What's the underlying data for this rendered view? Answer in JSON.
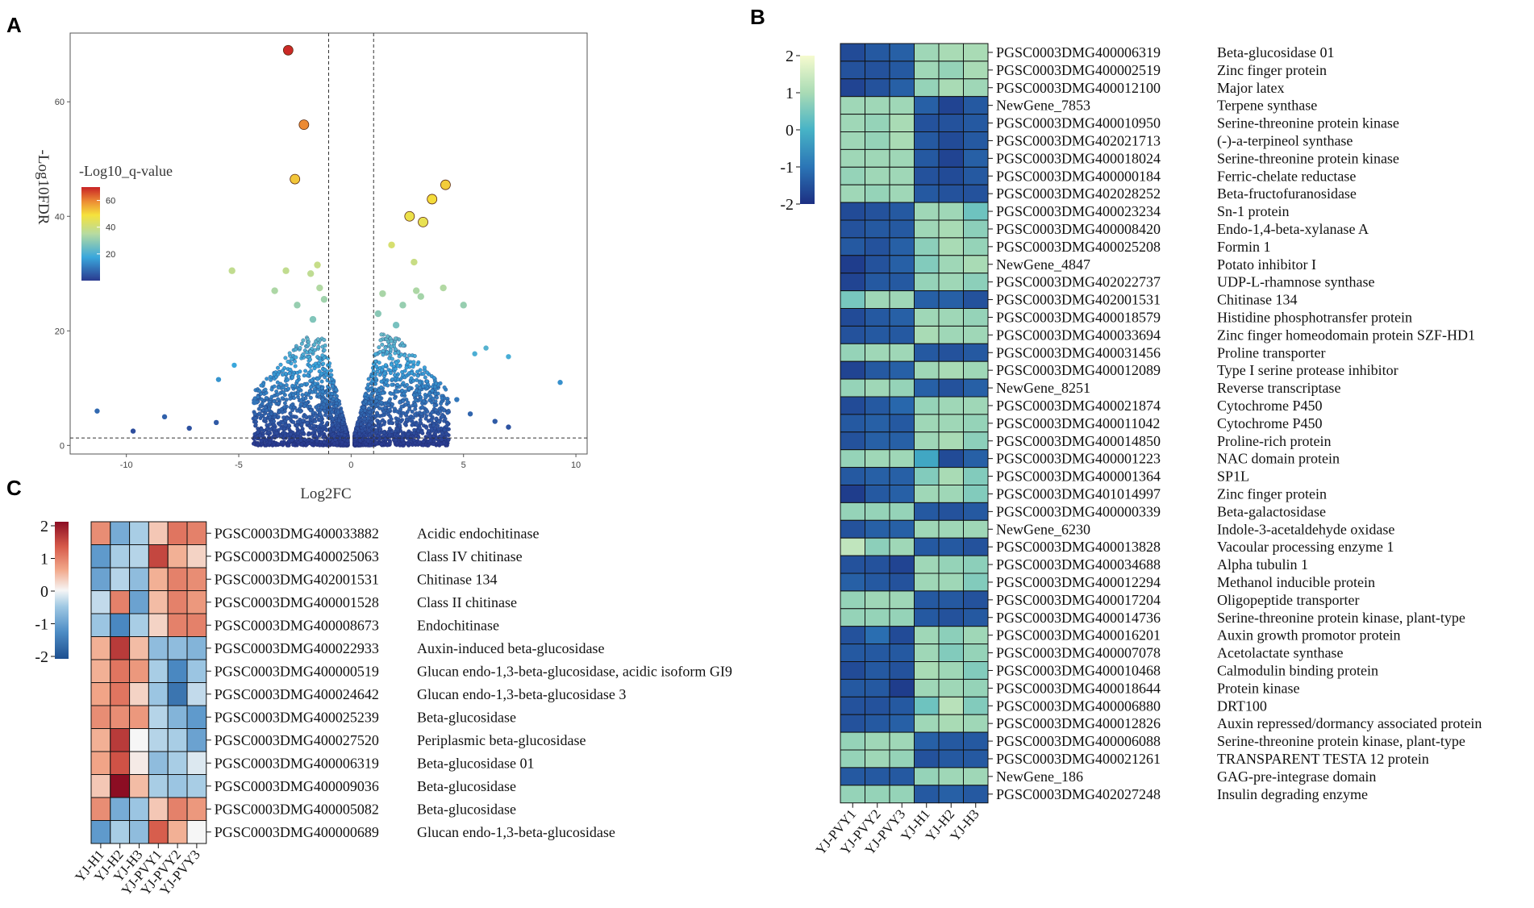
{
  "panels": {
    "a": "A",
    "b": "B",
    "c": "C"
  },
  "chart_data": [
    {
      "type": "scatter",
      "panel": "A",
      "title": "",
      "xlabel": "Log2FC",
      "ylabel": "-Log10FDR",
      "xlim": [
        -12.5,
        10.5
      ],
      "ylim": [
        -1.5,
        72
      ],
      "xticks": [
        "-10",
        "-5",
        "0",
        "5",
        "10"
      ],
      "xtick_values": [
        -10,
        -5,
        0,
        5,
        10
      ],
      "yticks": [
        "0",
        "20",
        "40",
        "60"
      ],
      "ytick_values": [
        0,
        20,
        40,
        60
      ],
      "vlines": [
        -1,
        1
      ],
      "hline": 1.3,
      "grid": false,
      "legend": {
        "title": "-Log10_q-value",
        "ticks": [
          "20",
          "40",
          "60"
        ],
        "tick_values": [
          20,
          40,
          60
        ],
        "range": [
          0,
          70
        ],
        "position": "top-left"
      },
      "points": [
        {
          "x": -2.8,
          "y": 69
        },
        {
          "x": -2.1,
          "y": 56
        },
        {
          "x": -2.5,
          "y": 46.5
        },
        {
          "x": 4.2,
          "y": 45.5
        },
        {
          "x": 3.6,
          "y": 43
        },
        {
          "x": 2.6,
          "y": 40
        },
        {
          "x": 3.2,
          "y": 39
        },
        {
          "x": 1.8,
          "y": 35
        },
        {
          "x": 2.8,
          "y": 32
        },
        {
          "x": -5.3,
          "y": 30.5
        },
        {
          "x": -2.9,
          "y": 30.5
        },
        {
          "x": -1.5,
          "y": 31.5
        },
        {
          "x": -1.8,
          "y": 30
        },
        {
          "x": 4.1,
          "y": 27.5
        },
        {
          "x": 2.9,
          "y": 27
        },
        {
          "x": -3.4,
          "y": 27
        },
        {
          "x": -1.4,
          "y": 27.5
        },
        {
          "x": 1.4,
          "y": 26.5
        },
        {
          "x": 3.1,
          "y": 26
        },
        {
          "x": 5.0,
          "y": 24.5
        },
        {
          "x": -1.2,
          "y": 25.5
        },
        {
          "x": 2.3,
          "y": 24.5
        },
        {
          "x": -2.4,
          "y": 24.5
        },
        {
          "x": 1.2,
          "y": 23
        },
        {
          "x": 2.0,
          "y": 21
        },
        {
          "x": -1.7,
          "y": 22
        },
        {
          "x": 6.0,
          "y": 17
        },
        {
          "x": 7.0,
          "y": 15.5
        },
        {
          "x": 5.5,
          "y": 16
        },
        {
          "x": -5.2,
          "y": 14
        },
        {
          "x": -5.9,
          "y": 11.5
        },
        {
          "x": 9.3,
          "y": 11
        },
        {
          "x": -11.3,
          "y": 6
        },
        {
          "x": -8.3,
          "y": 5
        },
        {
          "x": -7.2,
          "y": 3
        },
        {
          "x": -6.0,
          "y": 4
        },
        {
          "x": 6.4,
          "y": 4.2
        },
        {
          "x": 7.0,
          "y": 3.2
        },
        {
          "x": -9.7,
          "y": 2.5
        },
        {
          "x": 5.3,
          "y": 5.5
        },
        {
          "x": -4.3,
          "y": 7.5
        },
        {
          "x": 4.7,
          "y": 8
        }
      ],
      "cloud": {
        "description": "dense point cloud around 0",
        "seed": 7,
        "count": 2600,
        "xspread": 4.2,
        "ymax": 20
      }
    },
    {
      "type": "heatmap",
      "panel": "B",
      "columns": [
        "YJ-PVY1",
        "YJ-PVY2",
        "YJ-PVY3",
        "YJ-H1",
        "YJ-H2",
        "YJ-H3"
      ],
      "colorbar": {
        "ticks": [
          "2",
          "1",
          "0",
          "-1",
          "-2"
        ],
        "tick_values": [
          2,
          1,
          0,
          -1,
          -2
        ],
        "range": [
          -2,
          2
        ],
        "colors": [
          "#1c2f82",
          "#2b75b6",
          "#47b3c6",
          "#a9dbb5",
          "#f6fbcf"
        ]
      },
      "rows": [
        {
          "id": "PGSC0003DMG400006319",
          "name": "Beta-glucosidase 01",
          "values": [
            -1.6,
            -1.4,
            -1.3,
            0.9,
            1.0,
            1.0
          ]
        },
        {
          "id": "PGSC0003DMG400002519",
          "name": "Zinc finger protein",
          "values": [
            -1.5,
            -1.5,
            -1.4,
            0.9,
            0.8,
            1.0
          ]
        },
        {
          "id": "PGSC0003DMG400012100",
          "name": "Major latex",
          "values": [
            -1.7,
            -1.5,
            -1.3,
            0.8,
            1.0,
            0.9
          ]
        },
        {
          "id": "NewGene_7853",
          "name": "Terpene synthase",
          "values": [
            0.9,
            0.9,
            0.9,
            -1.3,
            -1.7,
            -1.4
          ]
        },
        {
          "id": "PGSC0003DMG400010950",
          "name": "Serine-threonine protein kinase",
          "values": [
            0.9,
            0.8,
            1.0,
            -1.5,
            -1.5,
            -1.4
          ]
        },
        {
          "id": "PGSC0003DMG402021713",
          "name": "(-)-a-terpineol synthase",
          "values": [
            0.9,
            0.8,
            1.0,
            -1.4,
            -1.6,
            -1.4
          ]
        },
        {
          "id": "PGSC0003DMG400018024",
          "name": "Serine-threonine protein kinase",
          "values": [
            0.9,
            0.9,
            0.9,
            -1.4,
            -1.7,
            -1.3
          ]
        },
        {
          "id": "PGSC0003DMG400000184",
          "name": "Ferric-chelate reductase",
          "values": [
            0.8,
            0.9,
            0.9,
            -1.5,
            -1.6,
            -1.4
          ]
        },
        {
          "id": "PGSC0003DMG402028252",
          "name": "Beta-fructofuranosidase",
          "values": [
            0.9,
            0.8,
            0.9,
            -1.4,
            -1.5,
            -1.5
          ]
        },
        {
          "id": "PGSC0003DMG400023234",
          "name": "Sn-1 protein",
          "values": [
            -1.6,
            -1.5,
            -1.4,
            0.9,
            0.9,
            0.4
          ]
        },
        {
          "id": "PGSC0003DMG400008420",
          "name": "Endo-1,4-beta-xylanase A",
          "values": [
            -1.5,
            -1.4,
            -1.4,
            0.9,
            1.0,
            0.7
          ]
        },
        {
          "id": "PGSC0003DMG400025208",
          "name": "Formin 1",
          "values": [
            -1.4,
            -1.5,
            -1.3,
            0.7,
            1.0,
            0.8
          ]
        },
        {
          "id": "NewGene_4847",
          "name": "Potato inhibitor I",
          "values": [
            -1.8,
            -1.5,
            -1.3,
            0.6,
            0.9,
            1.0
          ]
        },
        {
          "id": "PGSC0003DMG402022737",
          "name": "UDP-L-rhamnose synthase",
          "values": [
            -1.7,
            -1.4,
            -1.4,
            0.8,
            0.9,
            0.7
          ]
        },
        {
          "id": "PGSC0003DMG402001531",
          "name": "Chitinase 134",
          "values": [
            0.5,
            0.9,
            0.9,
            -1.3,
            -1.3,
            -1.5
          ]
        },
        {
          "id": "PGSC0003DMG400018579",
          "name": "Histidine phosphotransfer protein",
          "values": [
            -1.6,
            -1.4,
            -1.3,
            0.9,
            0.9,
            0.8
          ]
        },
        {
          "id": "PGSC0003DMG400033694",
          "name": "Zinc finger homeodomain protein SZF-HD1",
          "values": [
            -1.5,
            -1.4,
            -1.4,
            1.0,
            0.9,
            0.9
          ]
        },
        {
          "id": "PGSC0003DMG400031456",
          "name": "Proline transporter",
          "values": [
            0.8,
            0.9,
            0.9,
            -1.4,
            -1.5,
            -1.4
          ]
        },
        {
          "id": "PGSC0003DMG400012089",
          "name": "Type I serine protease inhibitor",
          "values": [
            -1.7,
            -1.4,
            -1.3,
            0.9,
            1.0,
            0.9
          ]
        },
        {
          "id": "NewGene_8251",
          "name": "Reverse transcriptase",
          "values": [
            0.8,
            0.9,
            0.8,
            -1.3,
            -1.5,
            -1.3
          ]
        },
        {
          "id": "PGSC0003DMG400021874",
          "name": "Cytochrome P450",
          "values": [
            -1.6,
            -1.4,
            -1.2,
            0.8,
            0.9,
            0.9
          ]
        },
        {
          "id": "PGSC0003DMG400011042",
          "name": "Cytochrome P450",
          "values": [
            -1.4,
            -1.3,
            -1.4,
            0.9,
            0.9,
            0.8
          ]
        },
        {
          "id": "PGSC0003DMG400014850",
          "name": "Proline-rich protein",
          "values": [
            -1.5,
            -1.3,
            -1.3,
            0.9,
            1.0,
            0.7
          ]
        },
        {
          "id": "PGSC0003DMG400001223",
          "name": "NAC domain protein",
          "values": [
            0.8,
            0.9,
            0.9,
            -0.2,
            -1.6,
            -1.3
          ]
        },
        {
          "id": "PGSC0003DMG400001364",
          "name": "SP1L",
          "values": [
            -1.4,
            -1.3,
            -1.3,
            0.6,
            1.0,
            0.6
          ]
        },
        {
          "id": "PGSC0003DMG401014997",
          "name": "Zinc finger protein",
          "values": [
            -1.8,
            -1.4,
            -1.3,
            0.9,
            0.9,
            0.6
          ]
        },
        {
          "id": "PGSC0003DMG400000339",
          "name": "Beta-galactosidase",
          "values": [
            0.8,
            0.8,
            0.8,
            -1.4,
            -1.5,
            -1.4
          ]
        },
        {
          "id": "NewGene_6230",
          "name": "Indole-3-acetaldehyde oxidase",
          "values": [
            -1.5,
            -1.3,
            -1.3,
            0.9,
            0.9,
            0.9
          ]
        },
        {
          "id": "PGSC0003DMG400013828",
          "name": "Vacoular processing enzyme 1",
          "values": [
            1.3,
            0.7,
            0.9,
            -1.4,
            -1.4,
            -1.5
          ]
        },
        {
          "id": "PGSC0003DMG400034688",
          "name": "Alpha tubulin 1",
          "values": [
            -1.5,
            -1.5,
            -1.7,
            0.9,
            0.8,
            0.7
          ]
        },
        {
          "id": "PGSC0003DMG400012294",
          "name": "Methanol inducible protein",
          "values": [
            -1.3,
            -1.4,
            -1.5,
            0.9,
            0.9,
            0.6
          ]
        },
        {
          "id": "PGSC0003DMG400017204",
          "name": "Oligopeptide transporter",
          "values": [
            0.8,
            0.9,
            0.9,
            -1.4,
            -1.4,
            -1.5
          ]
        },
        {
          "id": "PGSC0003DMG400014736",
          "name": "Serine-threonine protein kinase, plant-type",
          "values": [
            0.8,
            0.8,
            0.8,
            -1.4,
            -1.5,
            -1.4
          ]
        },
        {
          "id": "PGSC0003DMG400016201",
          "name": "Auxin growth promotor protein",
          "values": [
            -1.5,
            -1.1,
            -1.6,
            0.9,
            0.7,
            0.9
          ]
        },
        {
          "id": "PGSC0003DMG400007078",
          "name": "Acetolactate synthase",
          "values": [
            -1.4,
            -1.4,
            -1.4,
            0.9,
            0.6,
            0.8
          ]
        },
        {
          "id": "PGSC0003DMG400010468",
          "name": "Calmodulin binding protein",
          "values": [
            -1.6,
            -1.4,
            -1.5,
            1.0,
            0.9,
            0.6
          ]
        },
        {
          "id": "PGSC0003DMG400018644",
          "name": "Protein kinase",
          "values": [
            -1.4,
            -1.4,
            -1.8,
            0.9,
            0.9,
            0.8
          ]
        },
        {
          "id": "PGSC0003DMG400006880",
          "name": "DRT100",
          "values": [
            -1.5,
            -1.5,
            -1.4,
            0.4,
            1.2,
            0.6
          ]
        },
        {
          "id": "PGSC0003DMG400012826",
          "name": "Auxin repressed/dormancy associated protein",
          "values": [
            -1.5,
            -1.4,
            -1.3,
            0.9,
            1.0,
            0.9
          ]
        },
        {
          "id": "PGSC0003DMG400006088",
          "name": "Serine-threonine protein kinase, plant-type",
          "values": [
            0.8,
            0.9,
            0.9,
            -1.3,
            -1.4,
            -1.4
          ]
        },
        {
          "id": "PGSC0003DMG400021261",
          "name": "TRANSPARENT TESTA 12 protein",
          "values": [
            0.8,
            0.9,
            0.8,
            -1.5,
            -1.4,
            -1.4
          ]
        },
        {
          "id": "NewGene_186",
          "name": "GAG-pre-integrase domain",
          "values": [
            -1.4,
            -1.4,
            -1.4,
            0.8,
            0.9,
            0.9
          ]
        },
        {
          "id": "PGSC0003DMG402027248",
          "name": "Insulin degrading enzyme",
          "values": [
            0.8,
            0.8,
            0.8,
            -1.4,
            -1.3,
            -1.4
          ]
        }
      ]
    },
    {
      "type": "heatmap",
      "panel": "C",
      "columns": [
        "YJ-H1",
        "YJ-H2",
        "YJ-H3",
        "YJ-PVY1",
        "YJ-PVY2",
        "YJ-PVY3"
      ],
      "colorbar": {
        "ticks": [
          "2",
          "1",
          "0",
          "-1",
          "-2"
        ],
        "tick_values": [
          2,
          1,
          0,
          -1,
          -2
        ],
        "range": [
          -2,
          2
        ],
        "colors": [
          "#1d4f90",
          "#4f8ec6",
          "#9fc8e3",
          "#f6f6f6",
          "#f2a88a",
          "#d65a4a",
          "#8c0d23"
        ]
      },
      "rows": [
        {
          "id": "PGSC0003DMG400033882",
          "name": "Acidic endochitinase",
          "values": [
            0.9,
            -1.0,
            -0.6,
            0.4,
            1.1,
            1.0
          ]
        },
        {
          "id": "PGSC0003DMG400025063",
          "name": "Class IV chitinase",
          "values": [
            -1.2,
            -0.6,
            -0.5,
            1.5,
            0.6,
            0.3
          ]
        },
        {
          "id": "PGSC0003DMG402001531",
          "name": "Chitinase 134",
          "values": [
            -1.1,
            -0.5,
            -0.8,
            0.6,
            1.0,
            0.9
          ]
        },
        {
          "id": "PGSC0003DMG400001528",
          "name": "Class II chitinase",
          "values": [
            -0.4,
            1.0,
            -1.1,
            0.5,
            1.0,
            0.8
          ]
        },
        {
          "id": "PGSC0003DMG400008673",
          "name": "Endochitinase",
          "values": [
            -0.7,
            -1.4,
            -0.6,
            0.3,
            1.0,
            1.0
          ]
        },
        {
          "id": "PGSC0003DMG400022933",
          "name": "Auxin-induced beta-glucosidase",
          "values": [
            0.6,
            1.6,
            0.5,
            -0.8,
            -0.8,
            -0.9
          ]
        },
        {
          "id": "PGSC0003DMG400000519",
          "name": "Glucan endo-1,3-beta-glucosidase, acidic isoform GI9",
          "values": [
            0.6,
            1.1,
            0.8,
            -0.6,
            -1.4,
            -0.7
          ]
        },
        {
          "id": "PGSC0003DMG400024642",
          "name": "Glucan endo-1,3-beta-glucosidase 3",
          "values": [
            0.7,
            1.1,
            0.3,
            -0.7,
            -1.6,
            -0.4
          ]
        },
        {
          "id": "PGSC0003DMG400025239",
          "name": "Beta-glucosidase",
          "values": [
            0.9,
            0.9,
            0.8,
            -0.5,
            -0.9,
            -1.2
          ]
        },
        {
          "id": "PGSC0003DMG400027520",
          "name": "Periplasmic beta-glucosidase",
          "values": [
            0.6,
            1.6,
            0.0,
            -0.5,
            -0.6,
            -1.1
          ]
        },
        {
          "id": "PGSC0003DMG400006319",
          "name": "Beta-glucosidase 01",
          "values": [
            0.7,
            1.4,
            0.1,
            -0.8,
            -0.6,
            -0.2
          ]
        },
        {
          "id": "PGSC0003DMG400009036",
          "name": "Beta-glucosidase",
          "values": [
            0.4,
            2.0,
            0.5,
            -0.6,
            -0.7,
            -0.6
          ]
        },
        {
          "id": "PGSC0003DMG400005082",
          "name": "Beta-glucosidase",
          "values": [
            0.9,
            -1.0,
            -0.7,
            0.4,
            1.0,
            0.8
          ]
        },
        {
          "id": "PGSC0003DMG400000689",
          "name": "Glucan endo-1,3-beta-glucosidase",
          "values": [
            -1.2,
            -0.6,
            -0.8,
            1.3,
            0.6,
            0.0
          ]
        }
      ]
    }
  ]
}
